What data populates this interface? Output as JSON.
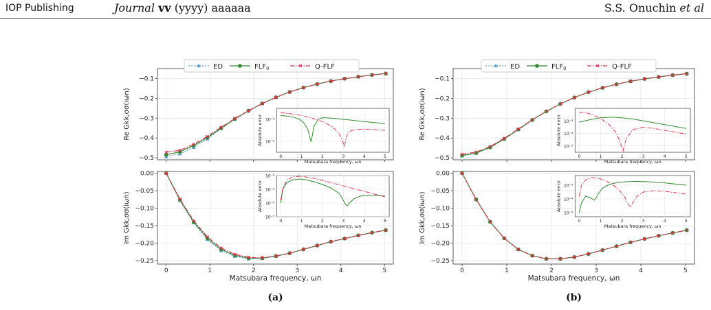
{
  "header": {
    "publisher": "IOP Publishing",
    "journal_prefix": "Journal",
    "volume": "vv",
    "year": "(yyyy)",
    "article": "aaaaaa",
    "authors_name": "S.S. Onuchin",
    "authors_suffix": "et al"
  },
  "legend": [
    {
      "name": "ED",
      "color": "#5b9bd5",
      "dash": "2,2",
      "marker": "triangle"
    },
    {
      "name": "FLF0",
      "color": "#2e8b2e",
      "dash": "",
      "marker": "circle"
    },
    {
      "name": "Q-FLF",
      "color": "#e0304e",
      "dash": "6,2,1.5,2",
      "marker": "x"
    }
  ],
  "common": {
    "xlabel": "Matsubara frequency, ωn",
    "re_ylabel": "Re Gkk,σσ(iωn)",
    "im_ylabel": "Im Gkk,σσ(iωn)",
    "inset_ylabel": "Absolute error",
    "inset_xlabel": "Matsubara frequency, ωn",
    "x_ticks": [
      "0",
      "1",
      "2",
      "3",
      "4",
      "5"
    ],
    "re_yticks": [
      "-0.5",
      "-0.4",
      "-0.3",
      "-0.2",
      "-0.1"
    ],
    "im_yticks": [
      "-0.25",
      "-0.20",
      "-0.15",
      "-0.10",
      "-0.05",
      "0.00"
    ]
  },
  "chart_data": [
    {
      "panel": "(a)",
      "part": "Re",
      "type": "line",
      "xlim": [
        -0.2,
        5.2
      ],
      "ylim": [
        -0.51,
        -0.05
      ],
      "x": [
        0,
        0.314,
        0.628,
        0.942,
        1.257,
        1.571,
        1.885,
        2.199,
        2.513,
        2.827,
        3.142,
        3.456,
        3.77,
        4.084,
        4.398,
        4.712,
        5.027
      ],
      "series": [
        {
          "name": "ED",
          "values": [
            -0.495,
            -0.48,
            -0.447,
            -0.405,
            -0.353,
            -0.306,
            -0.264,
            -0.227,
            -0.195,
            -0.168,
            -0.146,
            -0.128,
            -0.113,
            -0.101,
            -0.091,
            -0.082,
            -0.075
          ]
        },
        {
          "name": "FLF0",
          "values": [
            -0.485,
            -0.47,
            -0.438,
            -0.398,
            -0.35,
            -0.304,
            -0.263,
            -0.226,
            -0.195,
            -0.168,
            -0.146,
            -0.128,
            -0.113,
            -0.101,
            -0.091,
            -0.082,
            -0.075
          ]
        },
        {
          "name": "Q-FLF",
          "values": [
            -0.472,
            -0.462,
            -0.432,
            -0.392,
            -0.346,
            -0.302,
            -0.262,
            -0.226,
            -0.195,
            -0.168,
            -0.146,
            -0.128,
            -0.113,
            -0.101,
            -0.091,
            -0.082,
            -0.075
          ]
        }
      ],
      "inset": {
        "xlim": [
          -0.2,
          5.2
        ],
        "ylim_log10": [
          -6,
          -2
        ],
        "yticks": [
          "10⁻³",
          "10⁻⁵"
        ],
        "xticks": [
          "0",
          "1",
          "2",
          "3",
          "4",
          "5"
        ],
        "series": [
          {
            "name": "FLF0",
            "x": [
              0,
              0.3,
              0.6,
              0.9,
              1.1,
              1.3,
              1.4,
              1.45,
              1.5,
              1.6,
              1.8,
              2.0,
              2.5,
              3.0,
              3.5,
              4.0,
              4.5,
              5.0
            ],
            "log10": [
              -2.65,
              -2.7,
              -2.8,
              -3.0,
              -3.3,
              -3.9,
              -4.7,
              -5.0,
              -4.6,
              -3.6,
              -3.0,
              -2.85,
              -2.9,
              -3.0,
              -3.1,
              -3.2,
              -3.3,
              -3.4
            ]
          },
          {
            "name": "Q-FLF",
            "x": [
              0,
              0.5,
              1.0,
              1.5,
              2.0,
              2.5,
              2.8,
              3.0,
              3.05,
              3.1,
              3.2,
              3.4,
              3.8,
              4.2,
              4.6,
              5.0
            ],
            "log10": [
              -2.4,
              -2.5,
              -2.65,
              -2.9,
              -3.2,
              -3.7,
              -4.3,
              -5.2,
              -5.5,
              -5.0,
              -4.3,
              -4.0,
              -3.9,
              -3.9,
              -3.95,
              -4.0
            ]
          }
        ]
      }
    },
    {
      "panel": "(a)",
      "part": "Im",
      "type": "line",
      "xlim": [
        -0.2,
        5.2
      ],
      "ylim": [
        -0.26,
        0.005
      ],
      "x": [
        0,
        0.314,
        0.628,
        0.942,
        1.257,
        1.571,
        1.885,
        2.199,
        2.513,
        2.827,
        3.142,
        3.456,
        3.77,
        4.084,
        4.398,
        4.712,
        5.027
      ],
      "series": [
        {
          "name": "ED",
          "values": [
            0.0,
            -0.078,
            -0.142,
            -0.19,
            -0.222,
            -0.238,
            -0.245,
            -0.244,
            -0.238,
            -0.229,
            -0.218,
            -0.207,
            -0.196,
            -0.187,
            -0.178,
            -0.17,
            -0.163
          ]
        },
        {
          "name": "FLF0",
          "values": [
            0.0,
            -0.076,
            -0.139,
            -0.186,
            -0.218,
            -0.235,
            -0.243,
            -0.243,
            -0.237,
            -0.229,
            -0.218,
            -0.207,
            -0.196,
            -0.187,
            -0.178,
            -0.17,
            -0.163
          ]
        },
        {
          "name": "Q-FLF",
          "values": [
            0.0,
            -0.074,
            -0.136,
            -0.182,
            -0.214,
            -0.232,
            -0.241,
            -0.242,
            -0.237,
            -0.229,
            -0.218,
            -0.207,
            -0.196,
            -0.187,
            -0.178,
            -0.17,
            -0.163
          ]
        }
      ],
      "inset": {
        "xlim": [
          -0.2,
          5.2
        ],
        "ylim_log10": [
          -5,
          -2
        ],
        "yticks": [
          "10⁻²",
          "10⁻³",
          "10⁻⁴",
          "10⁻⁵"
        ],
        "xticks": [
          "0",
          "1",
          "2",
          "3",
          "4",
          "5"
        ],
        "series": [
          {
            "name": "FLF0",
            "x": [
              0,
              0.1,
              0.3,
              0.6,
              0.9,
              1.2,
              1.6,
              2.0,
              2.4,
              2.8,
              3.0,
              3.1,
              3.2,
              3.3,
              3.5,
              3.8,
              4.2,
              4.6,
              5.0
            ],
            "log10": [
              -4.0,
              -3.0,
              -2.5,
              -2.3,
              -2.25,
              -2.3,
              -2.45,
              -2.65,
              -2.9,
              -3.3,
              -3.8,
              -4.1,
              -4.2,
              -4.0,
              -3.7,
              -3.5,
              -3.45,
              -3.45,
              -3.5
            ]
          },
          {
            "name": "Q-FLF",
            "x": [
              0,
              0.1,
              0.3,
              0.6,
              0.9,
              1.2,
              1.6,
              2.0,
              2.5,
              3.0,
              3.5,
              4.0,
              4.5,
              5.0
            ],
            "log10": [
              -3.8,
              -2.9,
              -2.3,
              -2.1,
              -2.05,
              -2.1,
              -2.2,
              -2.35,
              -2.55,
              -2.75,
              -2.95,
              -3.15,
              -3.35,
              -3.55
            ]
          }
        ]
      }
    },
    {
      "panel": "(b)",
      "part": "Re",
      "type": "line",
      "xlim": [
        -0.2,
        5.2
      ],
      "ylim": [
        -0.51,
        -0.05
      ],
      "x": [
        0,
        0.314,
        0.628,
        0.942,
        1.257,
        1.571,
        1.885,
        2.199,
        2.513,
        2.827,
        3.142,
        3.456,
        3.77,
        4.084,
        4.398,
        4.712,
        5.027
      ],
      "series": [
        {
          "name": "ED",
          "values": [
            -0.49,
            -0.477,
            -0.448,
            -0.406,
            -0.358,
            -0.31,
            -0.266,
            -0.228,
            -0.196,
            -0.169,
            -0.147,
            -0.129,
            -0.114,
            -0.102,
            -0.092,
            -0.083,
            -0.076
          ]
        },
        {
          "name": "FLF0",
          "values": [
            -0.488,
            -0.476,
            -0.447,
            -0.405,
            -0.357,
            -0.309,
            -0.266,
            -0.228,
            -0.196,
            -0.169,
            -0.147,
            -0.129,
            -0.114,
            -0.102,
            -0.092,
            -0.083,
            -0.076
          ]
        },
        {
          "name": "Q-FLF",
          "values": [
            -0.482,
            -0.471,
            -0.443,
            -0.402,
            -0.355,
            -0.308,
            -0.265,
            -0.228,
            -0.196,
            -0.169,
            -0.147,
            -0.129,
            -0.114,
            -0.102,
            -0.092,
            -0.083,
            -0.076
          ]
        }
      ],
      "inset": {
        "xlim": [
          -0.2,
          5.2
        ],
        "ylim_log10": [
          -5.5,
          -2
        ],
        "yticks": [
          "10⁻³",
          "10⁻⁴",
          "10⁻⁵"
        ],
        "xticks": [
          "0",
          "1",
          "2",
          "3",
          "4",
          "5"
        ],
        "series": [
          {
            "name": "FLF0",
            "x": [
              0,
              0.5,
              1.0,
              1.5,
              2.0,
              2.5,
              3.0,
              3.5,
              4.0,
              4.5,
              5.0
            ],
            "log10": [
              -3.1,
              -2.9,
              -2.75,
              -2.7,
              -2.75,
              -2.85,
              -3.0,
              -3.15,
              -3.3,
              -3.45,
              -3.6
            ]
          },
          {
            "name": "Q-FLF",
            "x": [
              0,
              0.3,
              0.6,
              1.0,
              1.4,
              1.7,
              1.9,
              2.0,
              2.05,
              2.1,
              2.2,
              2.5,
              3.0,
              3.5,
              4.0,
              4.5,
              5.0
            ],
            "log10": [
              -2.3,
              -2.35,
              -2.5,
              -2.8,
              -3.3,
              -3.9,
              -4.6,
              -5.2,
              -5.4,
              -5.0,
              -4.4,
              -3.7,
              -3.5,
              -3.6,
              -3.75,
              -3.9,
              -4.05
            ]
          }
        ]
      }
    },
    {
      "panel": "(b)",
      "part": "Im",
      "type": "line",
      "xlim": [
        -0.2,
        5.2
      ],
      "ylim": [
        -0.26,
        0.005
      ],
      "x": [
        0,
        0.314,
        0.628,
        0.942,
        1.257,
        1.571,
        1.885,
        2.199,
        2.513,
        2.827,
        3.142,
        3.456,
        3.77,
        4.084,
        4.398,
        4.712,
        5.027
      ],
      "series": [
        {
          "name": "ED",
          "values": [
            0.0,
            -0.075,
            -0.139,
            -0.186,
            -0.218,
            -0.236,
            -0.245,
            -0.245,
            -0.24,
            -0.231,
            -0.22,
            -0.209,
            -0.198,
            -0.188,
            -0.179,
            -0.171,
            -0.163
          ]
        },
        {
          "name": "FLF0",
          "values": [
            0.0,
            -0.075,
            -0.139,
            -0.186,
            -0.218,
            -0.236,
            -0.245,
            -0.245,
            -0.24,
            -0.231,
            -0.22,
            -0.209,
            -0.198,
            -0.188,
            -0.179,
            -0.171,
            -0.163
          ]
        },
        {
          "name": "Q-FLF",
          "values": [
            0.0,
            -0.075,
            -0.139,
            -0.186,
            -0.218,
            -0.236,
            -0.245,
            -0.245,
            -0.24,
            -0.231,
            -0.22,
            -0.209,
            -0.198,
            -0.188,
            -0.179,
            -0.171,
            -0.163
          ]
        }
      ],
      "inset": {
        "xlim": [
          -0.2,
          5.2
        ],
        "ylim_log10": [
          -5.3,
          -2.3
        ],
        "yticks": [
          "10⁻³",
          "10⁻⁴",
          "10⁻⁵"
        ],
        "xticks": [
          "0",
          "1",
          "2",
          "3",
          "4",
          "5"
        ],
        "series": [
          {
            "name": "FLF0",
            "x": [
              0,
              0.1,
              0.3,
              0.5,
              0.7,
              0.8,
              0.9,
              1.1,
              1.4,
              1.8,
              2.2,
              2.7,
              3.2,
              3.8,
              4.4,
              5.0
            ],
            "log10": [
              -5.0,
              -4.3,
              -3.8,
              -3.9,
              -4.1,
              -3.9,
              -3.6,
              -3.2,
              -2.95,
              -2.8,
              -2.75,
              -2.72,
              -2.75,
              -2.8,
              -2.9,
              -3.0
            ]
          },
          {
            "name": "Q-FLF",
            "x": [
              0,
              0.1,
              0.3,
              0.6,
              0.9,
              1.2,
              1.5,
              1.8,
              2.1,
              2.3,
              2.4,
              2.5,
              2.7,
              3.0,
              3.5,
              4.0,
              4.5,
              5.0
            ],
            "log10": [
              -3.8,
              -3.0,
              -2.6,
              -2.45,
              -2.5,
              -2.65,
              -2.9,
              -3.25,
              -3.8,
              -4.4,
              -4.6,
              -4.3,
              -3.8,
              -3.5,
              -3.4,
              -3.45,
              -3.55,
              -3.65
            ]
          }
        ]
      }
    }
  ],
  "panel_labels": [
    "(a)",
    "(b)"
  ]
}
